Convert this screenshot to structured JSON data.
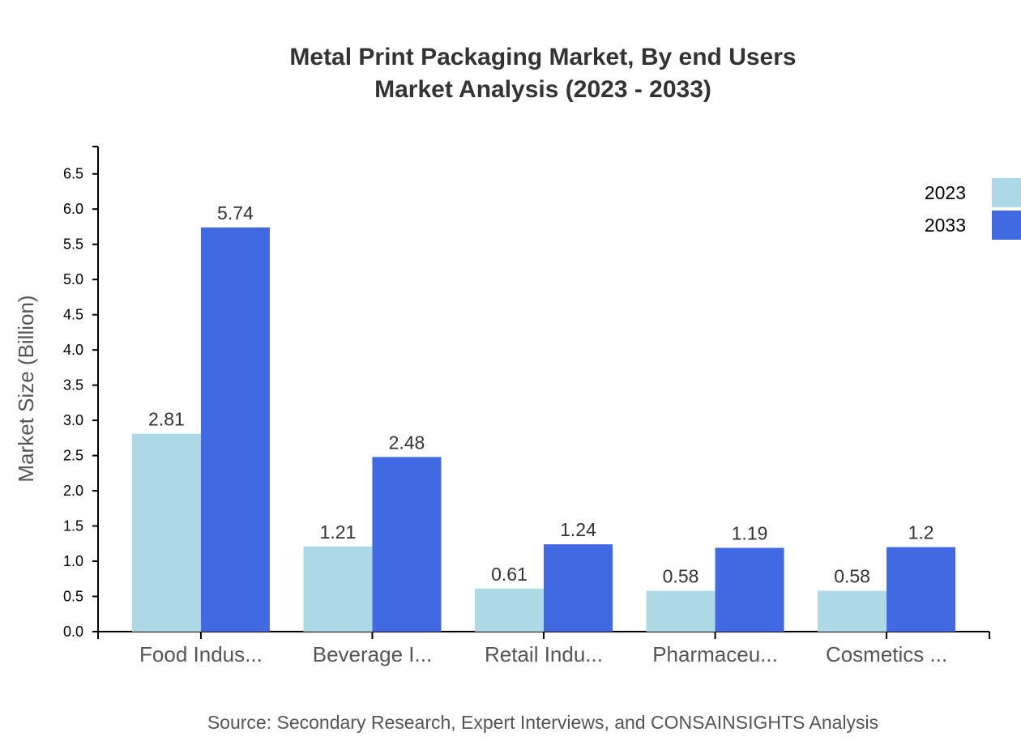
{
  "chart_data": {
    "type": "bar",
    "title": "Metal Print Packaging Market, By end Users",
    "subtitle": "Market Analysis (2023 - 2033)",
    "xlabel": "",
    "ylabel": "Market Size (Billion)",
    "ylim": [
      0,
      6.888
    ],
    "yticks": [
      "0.0",
      "0.5",
      "1.0",
      "1.5",
      "2.0",
      "2.5",
      "3.0",
      "3.5",
      "4.0",
      "4.5",
      "5.0",
      "5.5",
      "6.0",
      "6.5"
    ],
    "categories": [
      "Food Indus...",
      "Beverage I...",
      "Retail Indu...",
      "Pharmaceu...",
      "Cosmetics ..."
    ],
    "series": [
      {
        "name": "2023",
        "color": "#add8e6",
        "values": [
          2.81,
          1.21,
          0.61,
          0.58,
          0.58
        ]
      },
      {
        "name": "2033",
        "color": "#4169e1",
        "values": [
          5.74,
          2.48,
          1.24,
          1.19,
          1.2
        ]
      }
    ],
    "legend_position": "top-right",
    "grid": false,
    "source": "Source: Secondary Research, Expert Interviews, and CONSAINSIGHTS Analysis"
  }
}
